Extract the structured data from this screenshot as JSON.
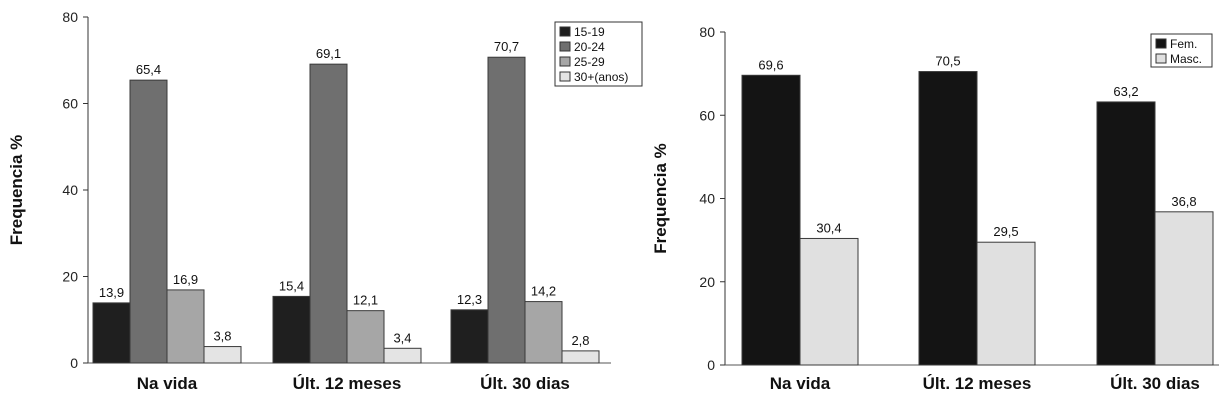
{
  "chart_data": [
    {
      "type": "bar",
      "ylabel": "Frequencia %",
      "ylim": [
        0,
        80
      ],
      "yticks": [
        0,
        20,
        40,
        60,
        80
      ],
      "categories": [
        "Na vida",
        "Últ. 12 meses",
        "Últ. 30 dias"
      ],
      "legend_position": "top-right",
      "series": [
        {
          "name": "15-19",
          "color": "#1f1f1f",
          "values": [
            13.9,
            15.4,
            12.3
          ],
          "labels": [
            "13,9",
            "15,4",
            "12,3"
          ]
        },
        {
          "name": "20-24",
          "color": "#6f6f6f",
          "values": [
            65.4,
            69.1,
            70.7
          ],
          "labels": [
            "65,4",
            "69,1",
            "70,7"
          ]
        },
        {
          "name": "25-29",
          "color": "#a6a6a6",
          "values": [
            16.9,
            12.1,
            14.2
          ],
          "labels": [
            "16,9",
            "12,1",
            "14,2"
          ]
        },
        {
          "name": "30+(anos)",
          "color": "#e4e4e4",
          "values": [
            3.8,
            3.4,
            2.8
          ],
          "labels": [
            "3,8",
            "3,4",
            "2,8"
          ]
        }
      ]
    },
    {
      "type": "bar",
      "ylabel": "Frequencia %",
      "ylim": [
        0,
        80
      ],
      "yticks": [
        0,
        20,
        40,
        60,
        80
      ],
      "categories": [
        "Na vida",
        "Últ. 12 meses",
        "Últ. 30 dias"
      ],
      "legend_position": "top-right",
      "series": [
        {
          "name": "Fem.",
          "color": "#141414",
          "values": [
            69.6,
            70.5,
            63.2
          ],
          "labels": [
            "69,6",
            "70,5",
            "63,2"
          ]
        },
        {
          "name": "Masc.",
          "color": "#e0e0e0",
          "values": [
            30.4,
            29.5,
            36.8
          ],
          "labels": [
            "30,4",
            "29,5",
            "36,8"
          ]
        }
      ]
    }
  ]
}
